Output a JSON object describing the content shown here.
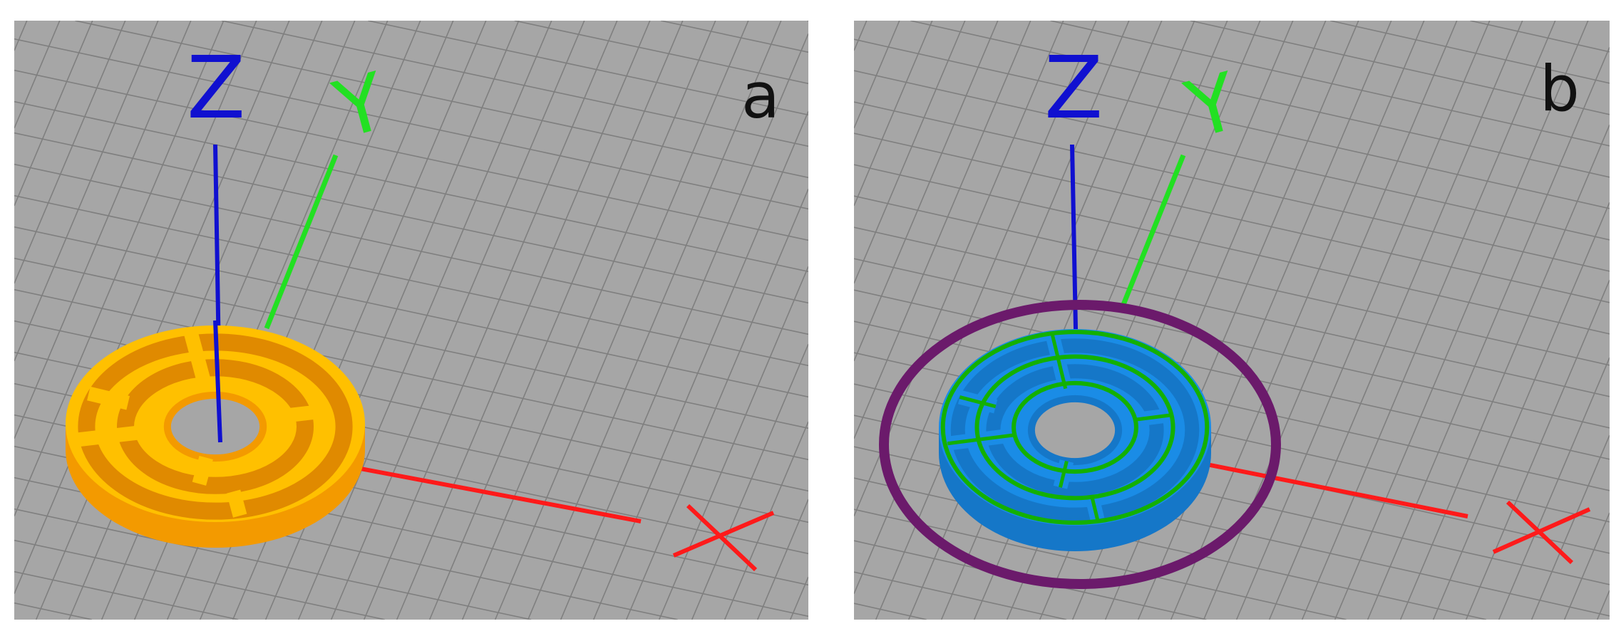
{
  "panels": [
    {
      "label": "a",
      "axes": {
        "x": "X",
        "y": "Y",
        "z": "Z"
      },
      "model": {
        "style": "solid",
        "top_color": "#ffc000",
        "side_color": "#f39a00",
        "gap_color": "#e08a00"
      }
    },
    {
      "label": "b",
      "axes": {
        "x": "X",
        "y": "Y",
        "z": "Z"
      },
      "model": {
        "style": "sliced",
        "top_color": "#1a8ce6",
        "side_color": "#1577c8",
        "outline_color": "#13b000",
        "skirt_color": "#6b1a6b"
      }
    }
  ],
  "colors": {
    "background": "#a6a6a6",
    "grid": "#7f7f7f",
    "x_axis": "#ff1a1a",
    "y_axis": "#22e022",
    "z_axis": "#1010d0"
  }
}
